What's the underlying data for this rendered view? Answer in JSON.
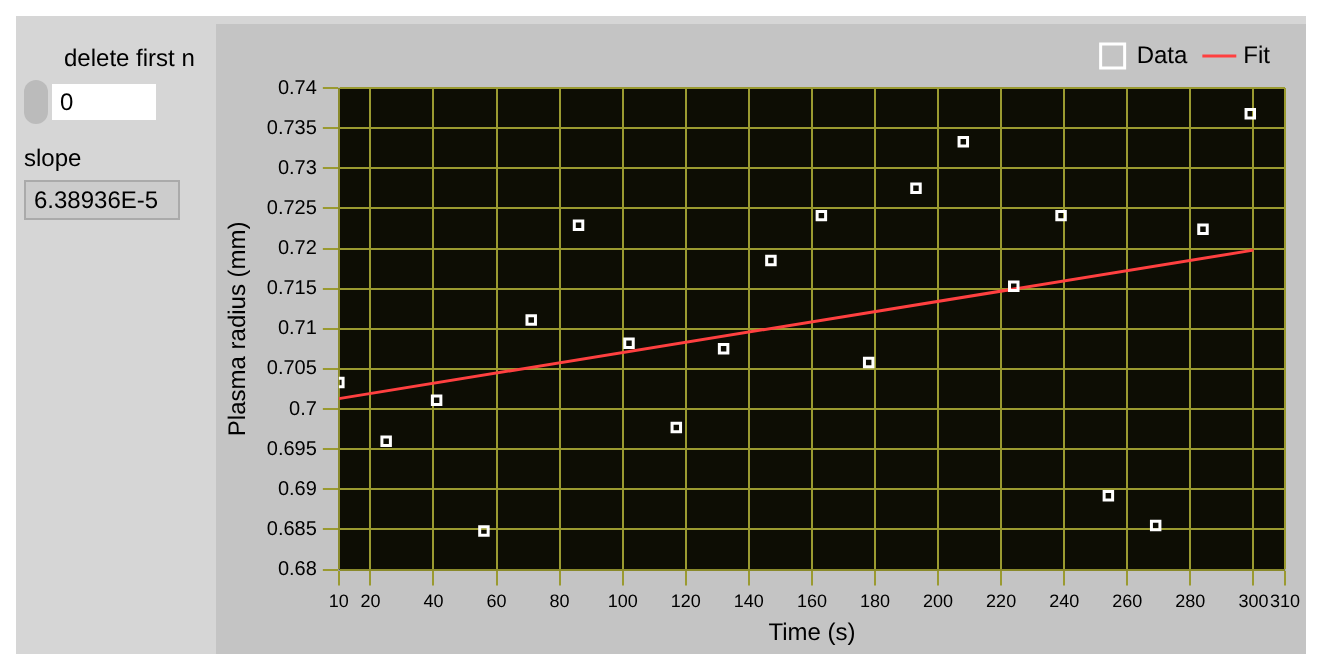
{
  "chart_data": {
    "type": "scatter",
    "xlabel": "Time (s)",
    "ylabel": "Plasma radius (mm)",
    "xlim": [
      10,
      310
    ],
    "xticks": [
      10,
      20,
      40,
      60,
      80,
      100,
      120,
      140,
      160,
      180,
      200,
      220,
      240,
      260,
      280,
      300,
      310
    ],
    "ylim": [
      0.68,
      0.74
    ],
    "yticks": [
      0.68,
      0.685,
      0.69,
      0.695,
      0.7,
      0.705,
      0.71,
      0.715,
      0.72,
      0.725,
      0.73,
      0.735,
      0.74
    ],
    "grid": true,
    "legend": "top right",
    "annotations": [
      "delete first n",
      "0",
      "slope",
      "6.38936E-5"
    ],
    "series": [
      {
        "name": "Data",
        "type": "scatter",
        "marker": "square",
        "color": "#ffffff",
        "x": [
          10,
          25,
          41,
          56,
          71,
          86,
          102,
          117,
          132,
          147,
          163,
          178,
          193,
          208,
          224,
          239,
          254,
          269,
          284,
          299
        ],
        "values": [
          0.7033,
          0.696,
          0.7011,
          0.6848,
          0.7111,
          0.7229,
          0.7082,
          0.6977,
          0.7075,
          0.7185,
          0.7241,
          0.7058,
          0.7275,
          0.7333,
          0.7153,
          0.7241,
          0.6892,
          0.6855,
          0.7224,
          0.7368
        ]
      },
      {
        "name": "Fit",
        "type": "line",
        "marker": "none",
        "color": "#ff4040",
        "x": [
          10,
          300
        ],
        "values": [
          0.7013,
          0.7198
        ]
      }
    ]
  }
}
